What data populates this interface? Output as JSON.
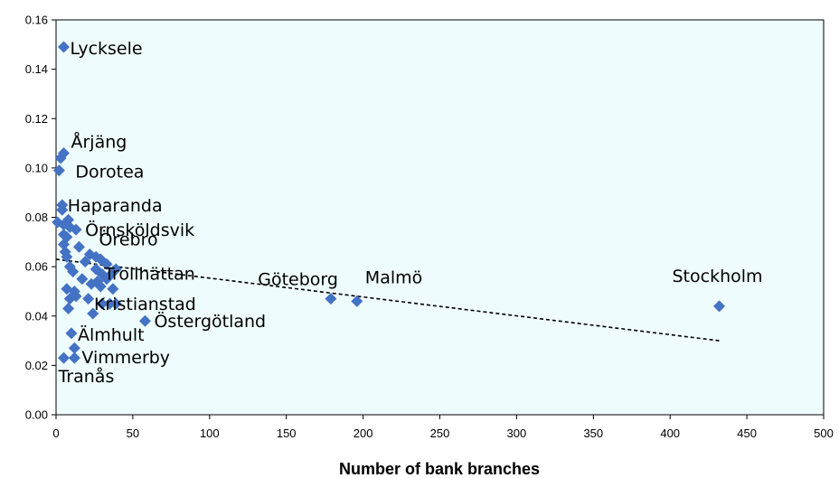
{
  "chart_data": {
    "type": "scatter",
    "title": "",
    "xlabel": "Number of bank branches",
    "ylabel": "",
    "xlim": [
      0,
      500
    ],
    "ylim": [
      0,
      0.16
    ],
    "x_ticks": [
      "0",
      "50",
      "100",
      "150",
      "200",
      "250",
      "300",
      "350",
      "400",
      "450",
      "500"
    ],
    "y_ticks": [
      "0.00",
      "0.02",
      "0.04",
      "0.06",
      "0.08",
      "0.10",
      "0.12",
      "0.14",
      "0.16"
    ],
    "grid": false,
    "legend": "none",
    "colors": {
      "marker": "#4472C4",
      "plot_background": "#EFFCFD",
      "trendline": "#000000"
    },
    "series": [
      {
        "points": [
          {
            "x": 5,
            "y": 0.149,
            "label": "Lycksele"
          },
          {
            "x": 5,
            "y": 0.106,
            "label": "Årjäng"
          },
          {
            "x": 3,
            "y": 0.104
          },
          {
            "x": 2,
            "y": 0.099,
            "label": "Dorotea"
          },
          {
            "x": 4,
            "y": 0.085,
            "label": "Haparanda"
          },
          {
            "x": 4,
            "y": 0.083
          },
          {
            "x": 8,
            "y": 0.079
          },
          {
            "x": 1,
            "y": 0.078
          },
          {
            "x": 5,
            "y": 0.077
          },
          {
            "x": 9,
            "y": 0.076
          },
          {
            "x": 13,
            "y": 0.075,
            "label": "Örnsköldsvik"
          },
          {
            "x": 5,
            "y": 0.073
          },
          {
            "x": 7,
            "y": 0.072
          },
          {
            "x": 5,
            "y": 0.069
          },
          {
            "x": 15,
            "y": 0.068,
            "label": "Örebro"
          },
          {
            "x": 6,
            "y": 0.066
          },
          {
            "x": 22,
            "y": 0.065
          },
          {
            "x": 7,
            "y": 0.064
          },
          {
            "x": 26,
            "y": 0.064
          },
          {
            "x": 19,
            "y": 0.062
          },
          {
            "x": 29,
            "y": 0.063
          },
          {
            "x": 33,
            "y": 0.061
          },
          {
            "x": 9,
            "y": 0.06
          },
          {
            "x": 26,
            "y": 0.059
          },
          {
            "x": 39,
            "y": 0.059
          },
          {
            "x": 11,
            "y": 0.058
          },
          {
            "x": 30,
            "y": 0.057
          },
          {
            "x": 36,
            "y": 0.057,
            "label": "Trollhättan"
          },
          {
            "x": 17,
            "y": 0.055
          },
          {
            "x": 33,
            "y": 0.055
          },
          {
            "x": 27,
            "y": 0.054
          },
          {
            "x": 23,
            "y": 0.053
          },
          {
            "x": 29,
            "y": 0.052
          },
          {
            "x": 37,
            "y": 0.051
          },
          {
            "x": 7,
            "y": 0.051
          },
          {
            "x": 12,
            "y": 0.05
          },
          {
            "x": 13,
            "y": 0.048
          },
          {
            "x": 9,
            "y": 0.047
          },
          {
            "x": 21,
            "y": 0.047
          },
          {
            "x": 30,
            "y": 0.045,
            "label": "Kristianstad"
          },
          {
            "x": 35,
            "y": 0.045
          },
          {
            "x": 39,
            "y": 0.045
          },
          {
            "x": 8,
            "y": 0.043
          },
          {
            "x": 24,
            "y": 0.041
          },
          {
            "x": 58,
            "y": 0.038,
            "label": "Östergötland"
          },
          {
            "x": 10,
            "y": 0.033,
            "label": "Älmhult"
          },
          {
            "x": 12,
            "y": 0.027
          },
          {
            "x": 12,
            "y": 0.023,
            "label": "Vimmerby"
          },
          {
            "x": 5,
            "y": 0.023,
            "label": "Tranås"
          },
          {
            "x": 179,
            "y": 0.047,
            "label": "Göteborg"
          },
          {
            "x": 196,
            "y": 0.046,
            "label": "Malmö"
          },
          {
            "x": 432,
            "y": 0.044,
            "label": "Stockholm"
          }
        ]
      }
    ],
    "trendline": {
      "style": "dashed",
      "x": [
        0,
        432
      ],
      "y": [
        0.063,
        0.03
      ]
    }
  }
}
